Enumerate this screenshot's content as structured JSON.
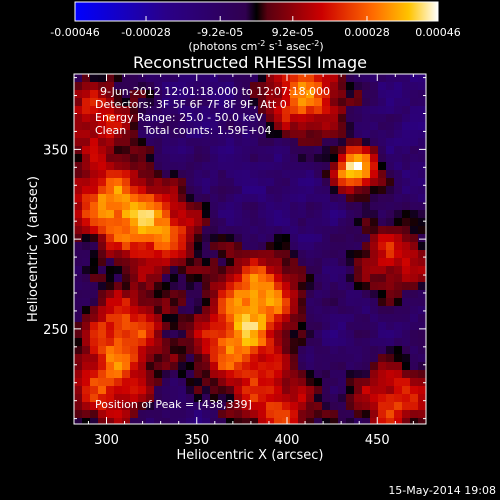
{
  "colorbar": {
    "ticks": [
      "-0.00046",
      "-0.00028",
      "-9.2e-05",
      "9.2e-05",
      "0.00028",
      "0.00046"
    ],
    "tick_values": [
      -0.00046,
      -0.00028,
      -9.2e-05,
      9.2e-05,
      0.00028,
      0.00046
    ],
    "range": [
      -0.00046,
      0.00046
    ],
    "units_parts": [
      "(photons cm",
      "-2",
      " s",
      "-1",
      " asec",
      "-2",
      ")"
    ]
  },
  "chart_data": {
    "type": "heatmap",
    "title": "Reconstructed RHESSI Image",
    "xlabel": "Heliocentric X (arcsec)",
    "ylabel": "Heliocentric Y (arcsec)",
    "xlim": [
      282,
      477
    ],
    "ylim": [
      197,
      392
    ],
    "x_ticks": [
      300,
      350,
      400,
      450
    ],
    "y_ticks": [
      250,
      300,
      350
    ],
    "hotspots": [
      {
        "x": 438,
        "y": 339,
        "intensity": 0.00046
      },
      {
        "x": 410,
        "y": 380,
        "intensity": 0.0003
      },
      {
        "x": 300,
        "y": 320,
        "intensity": 0.00028
      },
      {
        "x": 330,
        "y": 305,
        "intensity": 0.00027
      },
      {
        "x": 385,
        "y": 270,
        "intensity": 0.0003
      },
      {
        "x": 370,
        "y": 240,
        "intensity": 0.00025
      },
      {
        "x": 310,
        "y": 250,
        "intensity": 0.00024
      },
      {
        "x": 300,
        "y": 215,
        "intensity": 0.0002
      },
      {
        "x": 395,
        "y": 205,
        "intensity": 0.0002
      },
      {
        "x": 460,
        "y": 210,
        "intensity": 0.00022
      },
      {
        "x": 460,
        "y": 290,
        "intensity": 0.00018
      },
      {
        "x": 295,
        "y": 370,
        "intensity": 0.00018
      }
    ],
    "annotations": [
      "9-Jun-2012 12:01:18.000 to 12:07:18.000",
      "Detectors: 3F 5F 6F 7F 8F 9F, Att 0",
      "Energy Range: 25.0 - 50.0 keV",
      "Clean     Total counts: 1.59E+04"
    ],
    "peak_label": "Position of Peak = [438,339]"
  },
  "timestamp": "15-May-2014 19:08"
}
